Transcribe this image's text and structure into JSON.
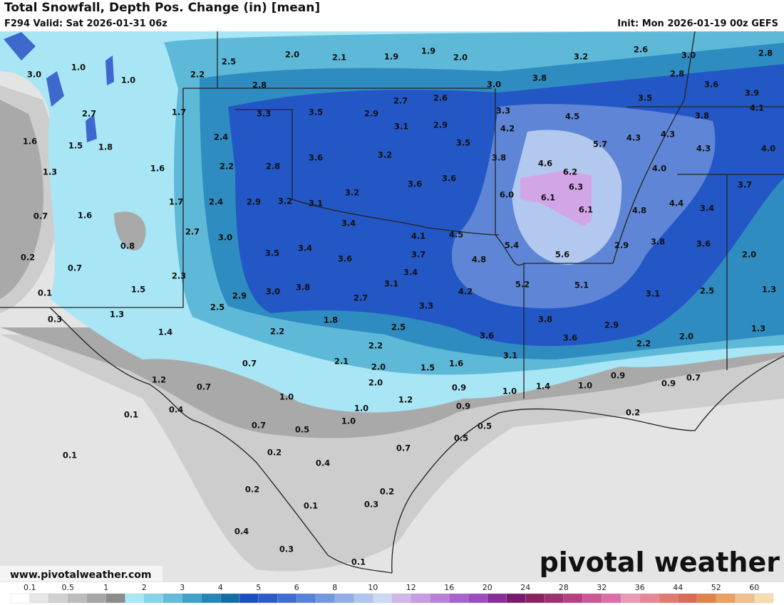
{
  "header": {
    "title": "Total Snowfall, Depth Pos. Change (in) [mean]",
    "valid": "F294 Valid: Sat 2026-01-31 06z",
    "init": "Init: Mon 2026-01-19 00z GEFS"
  },
  "map": {
    "labels": [
      "1.0",
      "3.0",
      "1.0",
      "2.2",
      "2.5",
      "2.0",
      "2.1",
      "1.9",
      "1.9",
      "2.0",
      "3.2",
      "2.6",
      "3.0",
      "2.8",
      "2.8",
      "3.0",
      "3.8",
      "2.8",
      "3.6",
      "3.9",
      "2.7",
      "2.6",
      "3.5",
      "2.7",
      "1.7",
      "3.3",
      "3.5",
      "2.9",
      "3.3",
      "4.5",
      "3.8",
      "4.1",
      "3.1",
      "2.9",
      "4.2",
      "4.3",
      "4.3",
      "1.6",
      "1.5",
      "1.8",
      "2.4",
      "3.5",
      "5.7",
      "4.3",
      "4.0",
      "3.6",
      "3.2",
      "3.8",
      "2.2",
      "2.8",
      "1.6",
      "4.6",
      "4.0",
      "1.3",
      "6.2",
      "3.6",
      "3.6",
      "6.0",
      "6.3",
      "3.7",
      "3.2",
      "6.1",
      "4.4",
      "3.4",
      "1.7",
      "2.4",
      "2.9",
      "3.2",
      "3.1",
      "6.1",
      "4.8",
      "0.7",
      "1.6",
      "3.4",
      "0.8",
      "2.7",
      "3.0",
      "4.1",
      "4.5",
      "5.4",
      "3.8",
      "3.6",
      "2.9",
      "3.5",
      "3.4",
      "0.2",
      "3.7",
      "5.6",
      "4.8",
      "3.6",
      "2.0",
      "0.7",
      "3.4",
      "2.3",
      "5.2",
      "5.1",
      "3.1",
      "3.8",
      "1.5",
      "3.0",
      "4.2",
      "0.1",
      "2.9",
      "3.1",
      "2.5",
      "1.3",
      "2.7",
      "3.3",
      "2.5",
      "1.3",
      "0.3",
      "1.8",
      "3.8",
      "2.9",
      "2.5",
      "2.2",
      "1.4",
      "3.6",
      "3.6",
      "2.0",
      "1.3",
      "2.2",
      "2.2",
      "3.1",
      "2.1",
      "0.7",
      "2.0",
      "1.5",
      "1.6",
      "0.9",
      "1.2",
      "0.7",
      "2.0",
      "0.9",
      "1.4",
      "1.0",
      "0.9",
      "0.7",
      "1.0",
      "1.0",
      "1.2",
      "0.4",
      "1.0",
      "0.1",
      "0.9",
      "0.2",
      "1.0",
      "0.5",
      "0.7",
      "0.5",
      "0.5",
      "0.7",
      "0.1",
      "0.2",
      "0.4",
      "0.2",
      "0.2",
      "0.3",
      "0.1",
      "0.4",
      "0.3",
      "0.1"
    ]
  },
  "footer": {
    "url": "www.pivotalweather.com",
    "logo": "pivotal weather"
  },
  "legend": {
    "labels": [
      "0.1",
      "0.5",
      "1",
      "2",
      "3",
      "4",
      "5",
      "6",
      "8",
      "10",
      "12",
      "16",
      "20",
      "24",
      "28",
      "32",
      "36",
      "44",
      "52",
      "60"
    ]
  }
}
